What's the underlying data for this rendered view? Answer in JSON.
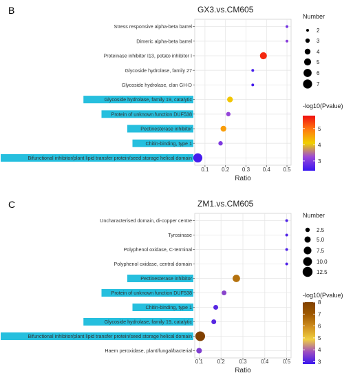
{
  "chart_data": [
    {
      "panel_label": "B",
      "type": "scatter",
      "title": "GX3.vs.CM605",
      "xlabel": "Ratio",
      "xlim": [
        0.05,
        0.52
      ],
      "xticks": [
        "0.1",
        "0.2",
        "0.3",
        "0.4",
        "0.5"
      ],
      "grid": true,
      "categories": [
        "Stress responsive alpha-beta barrel",
        "Dimeric alpha-beta barrel",
        "Proteinase inhibitor I13, potato inhibitor I",
        "Glycoside hydrolase, family 27",
        "Glycoside hydrolase, clan GH-D",
        "Glycoside hydrolase, family 19, catalytic",
        "Protein of unknown function DUF538",
        "Pectinesterase inhibitor",
        "Chitin-binding, type 1",
        "Bifunctional inhibitor/plant lipid transfer protein/seed storage helical domain"
      ],
      "highlighted": [
        false,
        false,
        false,
        false,
        false,
        true,
        true,
        true,
        true,
        true
      ],
      "points": [
        {
          "category": "Stress responsive alpha-beta barrel",
          "ratio": 0.5,
          "number": 2,
          "neglog10p": 2.9
        },
        {
          "category": "Dimeric alpha-beta barrel",
          "ratio": 0.5,
          "number": 2,
          "neglog10p": 3.1
        },
        {
          "category": "Proteinase inhibitor I13, potato inhibitor I",
          "ratio": 0.385,
          "number": 5,
          "neglog10p": 5.6
        },
        {
          "category": "Glycoside hydrolase, family 27",
          "ratio": 0.333,
          "number": 2,
          "neglog10p": 2.5
        },
        {
          "category": "Glycoside hydrolase, clan GH-D",
          "ratio": 0.333,
          "number": 2,
          "neglog10p": 2.5
        },
        {
          "category": "Glycoside hydrolase, family 19, catalytic",
          "ratio": 0.222,
          "number": 4,
          "neglog10p": 4.2
        },
        {
          "category": "Protein of unknown function DUF538",
          "ratio": 0.214,
          "number": 3,
          "neglog10p": 3.2
        },
        {
          "category": "Pectinesterase inhibitor",
          "ratio": 0.19,
          "number": 4,
          "neglog10p": 4.6
        },
        {
          "category": "Chitin-binding, type 1",
          "ratio": 0.176,
          "number": 3,
          "neglog10p": 3.0
        },
        {
          "category": "Bifunctional inhibitor/plant lipid transfer protein/seed storage helical domain",
          "ratio": 0.065,
          "number": 7,
          "neglog10p": 2.5
        }
      ],
      "size_legend": {
        "title": "Number",
        "labels": [
          "2",
          "3",
          "4",
          "5",
          "6",
          "7"
        ],
        "values": [
          2,
          3,
          4,
          5,
          6,
          7
        ],
        "range": [
          2,
          7
        ]
      },
      "color_legend": {
        "title": "-log10(Pvalue)",
        "labels": [
          "3",
          "4",
          "5"
        ],
        "values": [
          3,
          4,
          5
        ],
        "range": [
          2.4,
          5.8
        ],
        "colors": [
          "#3a16f0",
          "#9b48d8",
          "#f0d000",
          "#ff7a10",
          "#f01010"
        ]
      }
    },
    {
      "panel_label": "C",
      "type": "scatter",
      "title": "ZM1.vs.CM605",
      "xlabel": "Ratio",
      "xlim": [
        0.08,
        0.52
      ],
      "xticks": [
        "0.1",
        "0.2",
        "0.3",
        "0.4",
        "0.5"
      ],
      "grid": true,
      "categories": [
        "Uncharacterised domain, di-copper centre",
        "Tyrosinase",
        "Polyphenol oxidase, C-terminal",
        "Polyphenol oxidase, central domain",
        "Pectinesterase inhibitor",
        "Protein of unknown function DUF538",
        "Chitin-binding, type 1",
        "Glycoside hydrolase, family 19, catalytic",
        "Bifunctional inhibitor/plant lipid transfer protein/seed storage helical domain",
        "Haem peroxidase, plant/fungal/bacterial"
      ],
      "highlighted": [
        false,
        false,
        false,
        false,
        true,
        true,
        true,
        true,
        true,
        false
      ],
      "points": [
        {
          "category": "Uncharacterised domain, di-copper centre",
          "ratio": 0.5,
          "number": 1,
          "neglog10p": 3.0
        },
        {
          "category": "Tyrosinase",
          "ratio": 0.5,
          "number": 1,
          "neglog10p": 3.0
        },
        {
          "category": "Polyphenol oxidase, C-terminal",
          "ratio": 0.5,
          "number": 1,
          "neglog10p": 3.0
        },
        {
          "category": "Polyphenol oxidase, central domain",
          "ratio": 0.5,
          "number": 1,
          "neglog10p": 3.0
        },
        {
          "category": "Pectinesterase inhibitor",
          "ratio": 0.27,
          "number": 7,
          "neglog10p": 6.5
        },
        {
          "category": "Protein of unknown function DUF538",
          "ratio": 0.214,
          "number": 3,
          "neglog10p": 3.6
        },
        {
          "category": "Chitin-binding, type 1",
          "ratio": 0.176,
          "number": 3,
          "neglog10p": 3.1
        },
        {
          "category": "Glycoside hydrolase, family 19, catalytic",
          "ratio": 0.167,
          "number": 3,
          "neglog10p": 3.1
        },
        {
          "category": "Bifunctional inhibitor/plant lipid transfer protein/seed storage helical domain",
          "ratio": 0.105,
          "number": 12,
          "neglog10p": 8.0
        },
        {
          "category": "Haem peroxidase, plant/fungal/bacterial",
          "ratio": 0.1,
          "number": 4,
          "neglog10p": 3.5
        }
      ],
      "size_legend": {
        "title": "Number",
        "labels": [
          "2.5",
          "5.0",
          "7.5",
          "10.0",
          "12.5"
        ],
        "values": [
          2.5,
          5.0,
          7.5,
          10.0,
          12.5
        ],
        "range": [
          1,
          12.5
        ]
      },
      "color_legend": {
        "title": "-log10(Pvalue)",
        "labels": [
          "3",
          "4",
          "5",
          "6",
          "7",
          "8"
        ],
        "values": [
          3,
          4,
          5,
          6,
          7,
          8
        ],
        "range": [
          2.8,
          8.0
        ],
        "colors": [
          "#3a16f0",
          "#a050c0",
          "#f0d040",
          "#d09020",
          "#a05a00",
          "#804000"
        ]
      }
    }
  ]
}
